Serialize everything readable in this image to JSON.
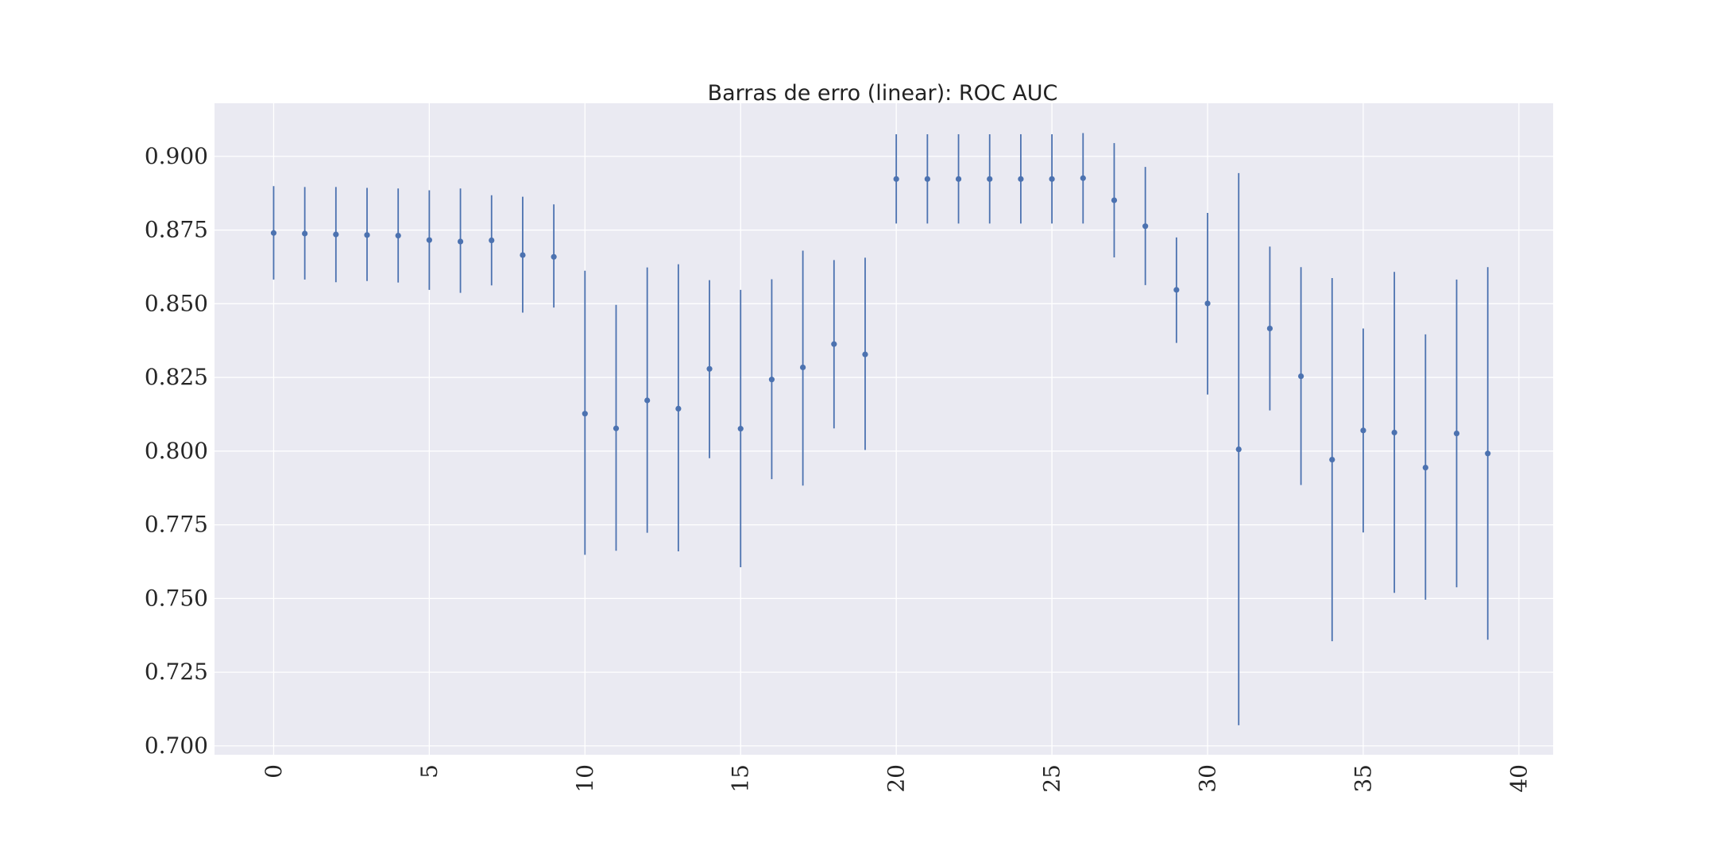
{
  "chart_data": {
    "type": "errorbar",
    "title": "Barras de erro (linear): ROC AUC",
    "xlabel": "",
    "ylabel": "",
    "xlim": [
      -1.9,
      41.1
    ],
    "ylim": [
      0.697,
      0.918
    ],
    "xticks": [
      0,
      5,
      10,
      15,
      20,
      25,
      30,
      35,
      40
    ],
    "yticks": [
      0.7,
      0.725,
      0.75,
      0.775,
      0.8,
      0.825,
      0.85,
      0.875,
      0.9
    ],
    "grid": true,
    "colors": {
      "series": "#4c72b0",
      "background": "#eaeaf2",
      "grid": "#ffffff"
    },
    "series": [
      {
        "x": [
          0,
          1,
          2,
          3,
          4,
          5,
          6,
          7,
          8,
          9,
          10,
          11,
          12,
          13,
          14,
          15,
          16,
          17,
          18,
          19,
          20,
          21,
          22,
          23,
          24,
          25,
          26,
          27,
          28,
          29,
          30,
          31,
          32,
          33,
          34,
          35,
          36,
          37,
          38,
          39
        ],
        "y": [
          0.874,
          0.8738,
          0.8735,
          0.8733,
          0.8731,
          0.8716,
          0.8711,
          0.8715,
          0.8665,
          0.8659,
          0.8127,
          0.8077,
          0.8172,
          0.8144,
          0.8279,
          0.8076,
          0.8243,
          0.8284,
          0.8363,
          0.8328,
          0.8923,
          0.8923,
          0.8923,
          0.8923,
          0.8923,
          0.8923,
          0.8926,
          0.8851,
          0.8763,
          0.8547,
          0.8501,
          0.8006,
          0.8416,
          0.8254,
          0.7971,
          0.807,
          0.8063,
          0.7944,
          0.806,
          0.7992
        ],
        "lower": [
          0.8582,
          0.8582,
          0.8573,
          0.8577,
          0.8572,
          0.8547,
          0.8537,
          0.8562,
          0.847,
          0.8487,
          0.7648,
          0.7662,
          0.7723,
          0.766,
          0.7976,
          0.7606,
          0.7905,
          0.7883,
          0.8077,
          0.8004,
          0.8772,
          0.8772,
          0.8772,
          0.8772,
          0.8772,
          0.8772,
          0.8772,
          0.8657,
          0.8563,
          0.8367,
          0.8192,
          0.707,
          0.8138,
          0.7885,
          0.7355,
          0.7724,
          0.7519,
          0.7496,
          0.7538,
          0.736
        ],
        "upper": [
          0.8899,
          0.8896,
          0.8896,
          0.8893,
          0.8891,
          0.8885,
          0.8891,
          0.8868,
          0.8863,
          0.8837,
          0.8612,
          0.8496,
          0.8623,
          0.8634,
          0.858,
          0.8547,
          0.8583,
          0.868,
          0.8648,
          0.8656,
          0.9075,
          0.9075,
          0.9075,
          0.9075,
          0.9075,
          0.9075,
          0.9079,
          0.9045,
          0.8964,
          0.8725,
          0.8808,
          0.8943,
          0.8694,
          0.8624,
          0.8587,
          0.8416,
          0.8608,
          0.8396,
          0.8582,
          0.8624
        ]
      }
    ]
  }
}
